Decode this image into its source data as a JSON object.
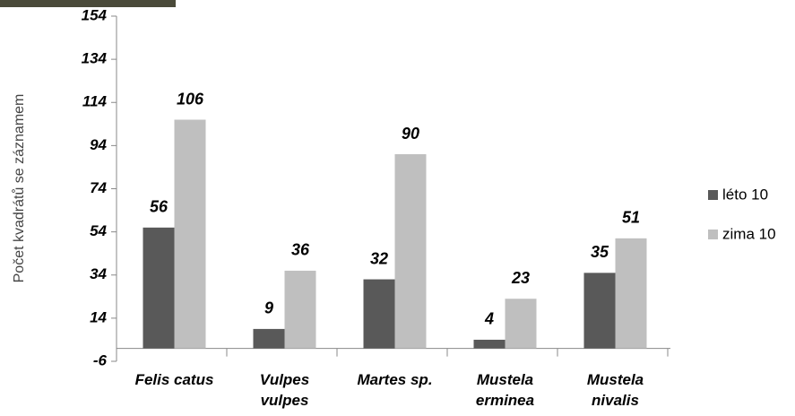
{
  "chart_data": {
    "type": "bar",
    "y_label": "Počet kvadrátů se záznamem",
    "categories": [
      "Felis catus",
      "Vulpes vulpes",
      "Martes sp.",
      "Mustela erminea",
      "Mustela nivalis"
    ],
    "series": [
      {
        "name": "léto 10",
        "color": "#595959",
        "values": [
          56,
          9,
          32,
          4,
          35
        ]
      },
      {
        "name": "zima 10",
        "color": "#bfbfbf",
        "values": [
          106,
          36,
          90,
          23,
          51
        ]
      }
    ],
    "ylim": [
      -6,
      154
    ],
    "yticks": [
      -6,
      14,
      34,
      54,
      74,
      94,
      114,
      134,
      154
    ],
    "legend": "right"
  }
}
